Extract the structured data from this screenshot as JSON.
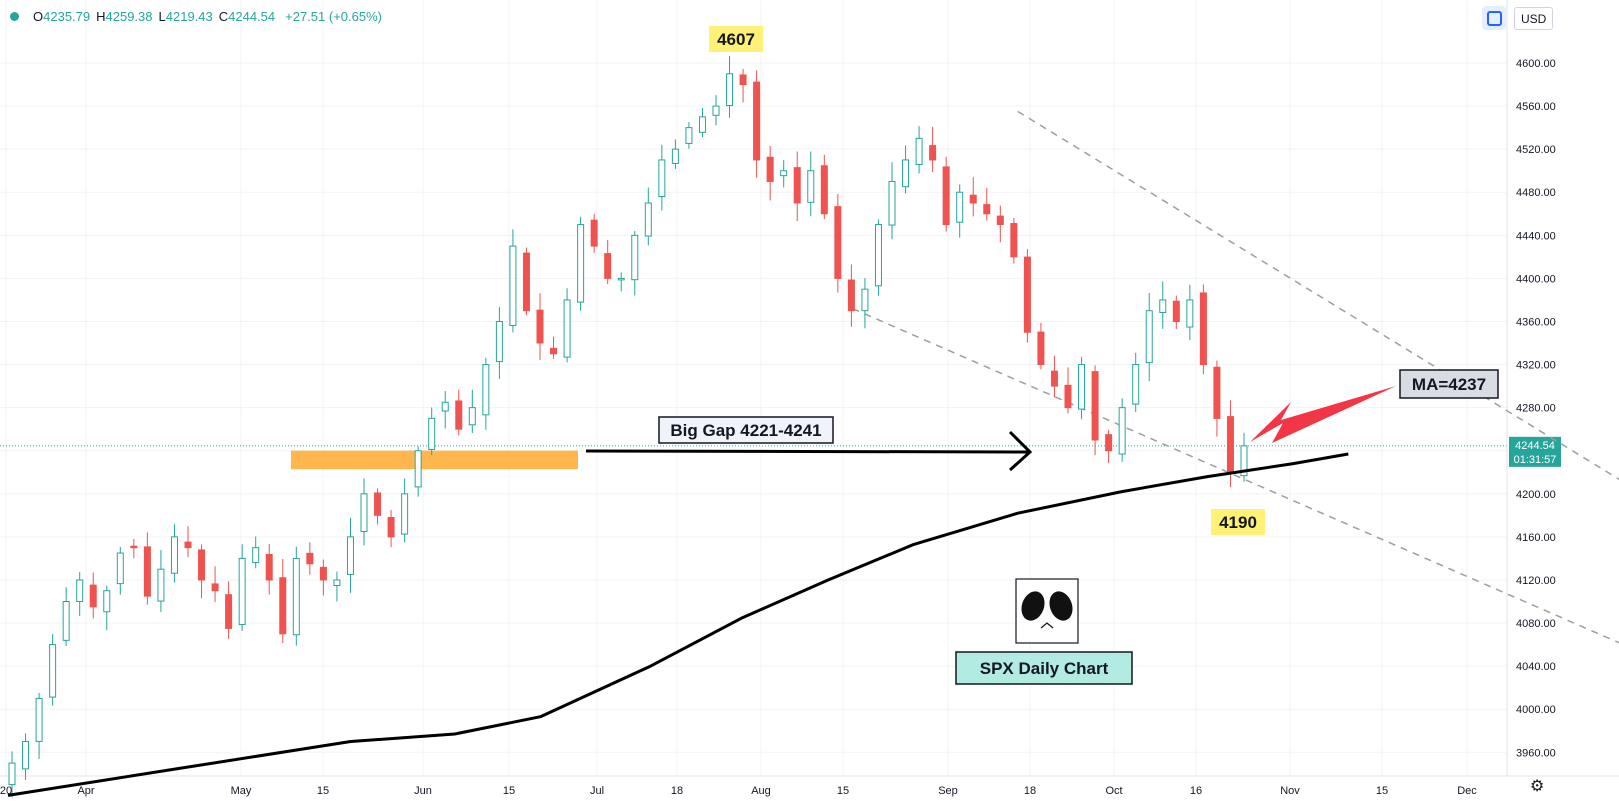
{
  "header": {
    "open_label": "O",
    "open": "4235.79",
    "high_label": "H",
    "high": "4259.38",
    "low_label": "L",
    "low": "4219.43",
    "close_label": "C",
    "close": "4244.54",
    "change": "+27.51 (+0.65%)"
  },
  "controls": {
    "currency": "USD",
    "settings_icon": "gear-icon",
    "scale_icon": "auto-scale-icon"
  },
  "colors": {
    "up": "#26a69a",
    "down": "#ef5350",
    "ma": "#000000",
    "gap_zone": "#ffb74d",
    "highlight": "#fff176"
  },
  "price_tag": {
    "price": "4244.54",
    "countdown": "01:31:57"
  },
  "annotations": {
    "high_label": "4607",
    "low_label": "4190",
    "gap_label": "Big Gap 4221-4241",
    "ma_label": "MA=4237",
    "title": "SPX Daily Chart"
  },
  "chart_data": {
    "type": "candlestick",
    "title": "SPX Daily Chart",
    "y_axis": {
      "range": [
        3950,
        4620
      ],
      "ticks": [
        "4600.00",
        "4560.00",
        "4520.00",
        "4480.00",
        "4440.00",
        "4400.00",
        "4360.00",
        "4320.00",
        "4280.00",
        "4240.00",
        "4200.00",
        "4160.00",
        "4120.00",
        "4080.00",
        "4040.00",
        "4000.00",
        "3960.00"
      ]
    },
    "x_axis": {
      "labels": [
        "20",
        "Apr",
        "May",
        "15",
        "Jun",
        "15",
        "Jul",
        "18",
        "Aug",
        "15",
        "Sep",
        "18",
        "Oct",
        "16",
        "Nov",
        "15",
        "Dec"
      ]
    },
    "close_series": [
      3950,
      3970,
      4010,
      4060,
      4100,
      4120,
      4095,
      4110,
      4145,
      4150,
      4105,
      4130,
      4160,
      4150,
      4120,
      4110,
      4075,
      4140,
      4150,
      4120,
      4070,
      4140,
      4135,
      4120,
      4120,
      4160,
      4200,
      4180,
      4160,
      4200,
      4240,
      4270,
      4285,
      4260,
      4280,
      4320,
      4360,
      4430,
      4370,
      4340,
      4330,
      4380,
      4450,
      4430,
      4400,
      4400,
      4440,
      4470,
      4510,
      4520,
      4540,
      4550,
      4560,
      4590,
      4580,
      4510,
      4490,
      4500,
      4470,
      4500,
      4460,
      4400,
      4370,
      4390,
      4450,
      4490,
      4510,
      4530,
      4510,
      4450,
      4480,
      4470,
      4460,
      4450,
      4420,
      4350,
      4320,
      4300,
      4280,
      4320,
      4250,
      4240,
      4280,
      4320,
      4370,
      4380,
      4360,
      4380,
      4320,
      4270,
      4220,
      4244.54
    ],
    "ma_series": [
      {
        "date": "Mar 20",
        "value": 3920
      },
      {
        "date": "Apr 17",
        "value": 3945
      },
      {
        "date": "May 15",
        "value": 3970
      },
      {
        "date": "Jun 1",
        "value": 3977
      },
      {
        "date": "Jun 15",
        "value": 3993
      },
      {
        "date": "Jul 3",
        "value": 4040
      },
      {
        "date": "Jul 18",
        "value": 4085
      },
      {
        "date": "Aug 1",
        "value": 4120
      },
      {
        "date": "Aug 15",
        "value": 4153
      },
      {
        "date": "Sep 1",
        "value": 4182
      },
      {
        "date": "Sep 18",
        "value": 4202
      },
      {
        "date": "Oct 2",
        "value": 4216
      },
      {
        "date": "Oct 16",
        "value": 4228
      },
      {
        "date": "Oct 25",
        "value": 4237
      }
    ],
    "gap_zone": [
      4221,
      4241
    ],
    "channel": {
      "upper": [
        {
          "date": "Sep 1",
          "value": 4555
        },
        {
          "date": "Dec 15",
          "value": 4190
        }
      ],
      "lower": [
        {
          "date": "Aug 5",
          "value": 4372
        },
        {
          "date": "Dec 15",
          "value": 4045
        }
      ]
    },
    "current_price": 4244.54,
    "high_marker": 4607,
    "low_marker": 4190
  }
}
